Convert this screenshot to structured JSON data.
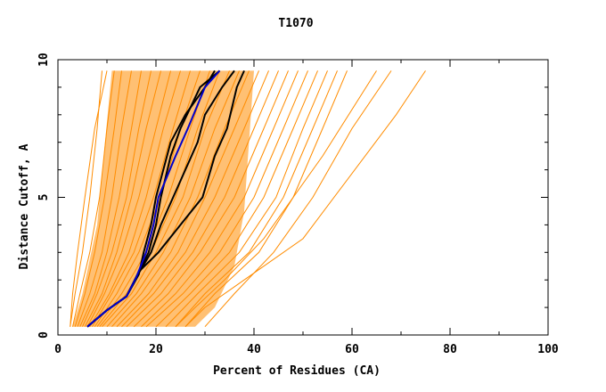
{
  "chart_data": {
    "type": "line",
    "title": "T1070",
    "xlabel": "Percent of Residues (CA)",
    "ylabel": "Distance Cutoff, A",
    "xlim": [
      0,
      100
    ],
    "ylim": [
      0,
      10
    ],
    "xticks": [
      0,
      20,
      40,
      60,
      80,
      100
    ],
    "yticks": [
      0,
      5,
      10
    ],
    "grid": false,
    "legend": "none",
    "colors": {
      "background_series": "#ff8c00",
      "highlight_series": "#000000",
      "reference_series": "#0000cc"
    },
    "background_series": [
      {
        "x": [
          3.0,
          4.5,
          6.5,
          8.5,
          10.0,
          11.5
        ],
        "y": [
          0.3,
          1.5,
          3.0,
          5.0,
          7.5,
          9.6
        ]
      },
      {
        "x": [
          3.5,
          5.5,
          7.5,
          9.5,
          11.5,
          13.0
        ],
        "y": [
          0.3,
          1.5,
          3.0,
          5.0,
          7.5,
          9.6
        ]
      },
      {
        "x": [
          4.0,
          6.5,
          9.0,
          11.0,
          13.0,
          15.0
        ],
        "y": [
          0.3,
          1.5,
          3.0,
          5.0,
          7.5,
          9.6
        ]
      },
      {
        "x": [
          4.5,
          7.5,
          10.0,
          12.5,
          15.0,
          17.0
        ],
        "y": [
          0.3,
          1.5,
          3.0,
          5.0,
          7.5,
          9.6
        ]
      },
      {
        "x": [
          5.0,
          8.0,
          11.0,
          14.0,
          16.5,
          19.0
        ],
        "y": [
          0.3,
          1.5,
          3.0,
          5.0,
          7.5,
          9.6
        ]
      },
      {
        "x": [
          5.5,
          9.0,
          12.0,
          15.0,
          18.0,
          21.0
        ],
        "y": [
          0.3,
          1.5,
          3.0,
          5.0,
          7.5,
          9.6
        ]
      },
      {
        "x": [
          6.0,
          9.5,
          13.0,
          16.5,
          20.0,
          23.0
        ],
        "y": [
          0.3,
          1.5,
          3.0,
          5.0,
          7.5,
          9.6
        ]
      },
      {
        "x": [
          6.5,
          10.5,
          14.5,
          18.0,
          21.5,
          25.0
        ],
        "y": [
          0.3,
          1.5,
          3.0,
          5.0,
          7.5,
          9.6
        ]
      },
      {
        "x": [
          7.0,
          11.0,
          15.5,
          19.5,
          23.5,
          27.0
        ],
        "y": [
          0.3,
          1.5,
          3.0,
          5.0,
          7.5,
          9.6
        ]
      },
      {
        "x": [
          7.5,
          12.0,
          16.5,
          21.0,
          25.0,
          29.0
        ],
        "y": [
          0.3,
          1.5,
          3.0,
          5.0,
          7.5,
          9.6
        ]
      },
      {
        "x": [
          8.0,
          13.0,
          18.0,
          22.5,
          27.0,
          31.0
        ],
        "y": [
          0.3,
          1.5,
          3.0,
          5.0,
          7.5,
          9.6
        ]
      },
      {
        "x": [
          8.5,
          14.0,
          19.0,
          24.0,
          28.5,
          33.0
        ],
        "y": [
          0.3,
          1.5,
          3.0,
          5.0,
          7.5,
          9.6
        ]
      },
      {
        "x": [
          9.0,
          15.0,
          20.0,
          25.5,
          30.0,
          35.0
        ],
        "y": [
          0.3,
          1.5,
          3.0,
          5.0,
          7.5,
          9.6
        ]
      },
      {
        "x": [
          10.0,
          16.0,
          21.5,
          27.0,
          32.0,
          37.0
        ],
        "y": [
          0.3,
          1.5,
          3.0,
          5.0,
          7.5,
          9.6
        ]
      },
      {
        "x": [
          11.0,
          17.0,
          23.0,
          28.5,
          34.0,
          39.0
        ],
        "y": [
          0.3,
          1.5,
          3.0,
          5.0,
          7.5,
          9.6
        ]
      },
      {
        "x": [
          12.0,
          18.5,
          24.5,
          30.0,
          36.0,
          41.0
        ],
        "y": [
          0.3,
          1.5,
          3.0,
          5.0,
          7.5,
          9.6
        ]
      },
      {
        "x": [
          13.0,
          19.5,
          26.0,
          32.0,
          38.0,
          43.0
        ],
        "y": [
          0.3,
          1.5,
          3.0,
          5.0,
          7.5,
          9.6
        ]
      },
      {
        "x": [
          14.0,
          21.0,
          27.5,
          34.0,
          40.0,
          45.0
        ],
        "y": [
          0.3,
          1.5,
          3.0,
          5.0,
          7.5,
          9.6
        ]
      },
      {
        "x": [
          15.5,
          22.5,
          29.0,
          36.0,
          42.0,
          47.0
        ],
        "y": [
          0.3,
          1.5,
          3.0,
          5.0,
          7.5,
          9.6
        ]
      },
      {
        "x": [
          17.0,
          24.0,
          31.0,
          38.0,
          44.0,
          49.0
        ],
        "y": [
          0.3,
          1.5,
          3.0,
          5.0,
          7.5,
          9.6
        ]
      },
      {
        "x": [
          18.0,
          25.5,
          33.0,
          40.0,
          46.0,
          51.0
        ],
        "y": [
          0.3,
          1.5,
          3.0,
          5.0,
          7.5,
          9.6
        ]
      },
      {
        "x": [
          20.0,
          27.0,
          35.0,
          42.0,
          48.0,
          53.0
        ],
        "y": [
          0.3,
          1.5,
          3.0,
          5.0,
          7.5,
          9.6
        ]
      },
      {
        "x": [
          22.0,
          28.5,
          37.0,
          44.5,
          50.0,
          55.0
        ],
        "y": [
          0.3,
          1.5,
          3.0,
          5.0,
          7.5,
          9.6
        ]
      },
      {
        "x": [
          24.0,
          30.0,
          39.0,
          46.0,
          52.0,
          57.0
        ],
        "y": [
          0.3,
          1.5,
          3.0,
          5.0,
          7.5,
          9.6
        ]
      },
      {
        "x": [
          26.0,
          32.0,
          41.0,
          48.0,
          54.0,
          59.0
        ],
        "y": [
          0.3,
          1.5,
          3.0,
          5.0,
          7.5,
          9.6
        ]
      },
      {
        "x": [
          24.0,
          28.0,
          34.0,
          42.0,
          54.0,
          65.0
        ],
        "y": [
          0.3,
          1.0,
          2.0,
          3.5,
          6.5,
          9.6
        ]
      },
      {
        "x": [
          26.0,
          30.0,
          38.0,
          50.0,
          69.0,
          75.0
        ],
        "y": [
          0.3,
          1.0,
          2.0,
          3.5,
          8.0,
          9.6
        ]
      },
      {
        "x": [
          30.0,
          36.0,
          44.0,
          52.0,
          60.0,
          68.0
        ],
        "y": [
          0.3,
          1.5,
          3.0,
          5.0,
          7.5,
          9.6
        ]
      },
      {
        "x": [
          2.5,
          3.5,
          5.0,
          6.5,
          8.0,
          9.0
        ],
        "y": [
          0.3,
          1.5,
          3.0,
          5.0,
          7.5,
          9.6
        ]
      },
      {
        "x": [
          2.5,
          3.0,
          4.0,
          5.5,
          7.5,
          10.0
        ],
        "y": [
          0.3,
          1.5,
          3.0,
          5.0,
          7.5,
          9.6
        ]
      }
    ],
    "highlight_series": [
      {
        "x": [
          6.0,
          10.0,
          14.0,
          16.0,
          19.0,
          21.0,
          23.5,
          28.5,
          30.0,
          33.5,
          36.0
        ],
        "y": [
          0.3,
          0.9,
          1.4,
          2.1,
          3.0,
          4.0,
          5.0,
          7.0,
          8.0,
          9.0,
          9.6
        ]
      },
      {
        "x": [
          6.0,
          10.0,
          14.0,
          16.5,
          17.5,
          19.0,
          20.0,
          23.0,
          26.0,
          30.0,
          32.0
        ],
        "y": [
          0.3,
          0.9,
          1.4,
          2.2,
          3.0,
          4.0,
          5.0,
          7.0,
          8.0,
          9.0,
          9.6
        ]
      },
      {
        "x": [
          6.0,
          10.0,
          14.0,
          16.5,
          20.5,
          25.0,
          29.5,
          32.0,
          34.5,
          36.5,
          38.0
        ],
        "y": [
          0.3,
          0.9,
          1.4,
          2.3,
          3.0,
          4.0,
          5.0,
          6.5,
          7.5,
          9.0,
          9.6
        ]
      },
      {
        "x": [
          6.0,
          10.0,
          14.0,
          16.0,
          18.5,
          20.0,
          21.0,
          23.0,
          25.0,
          29.0,
          33.0
        ],
        "y": [
          0.3,
          0.9,
          1.4,
          2.1,
          3.0,
          4.0,
          5.0,
          6.5,
          7.5,
          9.0,
          9.6
        ]
      }
    ],
    "reference_series": [
      {
        "x": [
          6.0,
          10.0,
          14.0,
          16.0,
          18.0,
          19.5,
          20.5,
          24.0,
          26.5,
          30.0,
          33.0
        ],
        "y": [
          0.3,
          0.9,
          1.4,
          2.1,
          3.0,
          4.0,
          5.0,
          6.5,
          7.5,
          9.0,
          9.6
        ]
      }
    ]
  }
}
